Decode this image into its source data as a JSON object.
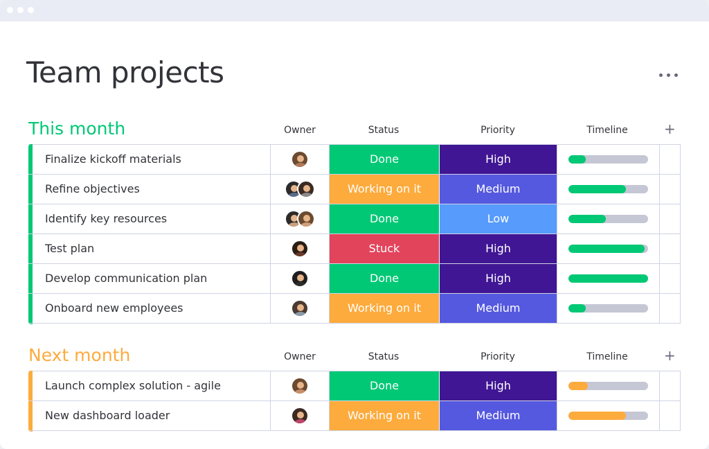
{
  "page": {
    "title": "Team projects"
  },
  "columns": {
    "owner": "Owner",
    "status": "Status",
    "priority": "Priority",
    "timeline": "Timeline",
    "add": "+"
  },
  "colors": {
    "Done": "#00c875",
    "Working on it": "#fdab3d",
    "Stuck": "#e2445c",
    "High": "#401694",
    "Medium": "#5559df",
    "Low": "#579bfc",
    "this_month": "#00c875",
    "next_month": "#fdab3d"
  },
  "groups": [
    {
      "title": "This month",
      "color": "#00c875",
      "rows": [
        {
          "name": "Finalize kickoff materials",
          "status": "Done",
          "priority": "High",
          "timeline": 0.22,
          "owners": [
            {
              "hair": "#6b4a2f",
              "shirt": "#b07a5a"
            }
          ]
        },
        {
          "name": "Refine objectives",
          "status": "Working on it",
          "priority": "Medium",
          "timeline": 0.72,
          "owners": [
            {
              "hair": "#2b2b2b",
              "shirt": "#5a6b8a"
            },
            {
              "hair": "#3a2a22",
              "shirt": "#8a8a8a"
            }
          ]
        },
        {
          "name": "Identify key resources",
          "status": "Done",
          "priority": "Low",
          "timeline": 0.47,
          "owners": [
            {
              "hair": "#2b2b2b",
              "shirt": "#c9a27a"
            },
            {
              "hair": "#6b4a2f",
              "shirt": "#d1a07a"
            }
          ]
        },
        {
          "name": "Test plan",
          "status": "Stuck",
          "priority": "High",
          "timeline": 0.96,
          "owners": [
            {
              "hair": "#2b1d14",
              "shirt": "#6b3a2a"
            }
          ]
        },
        {
          "name": "Develop communication plan",
          "status": "Done",
          "priority": "High",
          "timeline": 1.0,
          "owners": [
            {
              "hair": "#1e1e1e",
              "shirt": "#2e2e2e"
            }
          ]
        },
        {
          "name": "Onboard new employees",
          "status": "Working on it",
          "priority": "Medium",
          "timeline": 0.22,
          "owners": [
            {
              "hair": "#4a3a30",
              "shirt": "#8a9aa8"
            }
          ]
        }
      ]
    },
    {
      "title": "Next month",
      "color": "#fdab3d",
      "rows": [
        {
          "name": "Launch complex solution - agile",
          "status": "Done",
          "priority": "High",
          "timeline": 0.24,
          "owners": [
            {
              "hair": "#6b4a2f",
              "shirt": "#c98f6a"
            }
          ]
        },
        {
          "name": "New dashboard loader",
          "status": "Working on it",
          "priority": "Medium",
          "timeline": 0.72,
          "owners": [
            {
              "hair": "#3a2a22",
              "shirt": "#c0446a"
            }
          ]
        }
      ]
    }
  ]
}
